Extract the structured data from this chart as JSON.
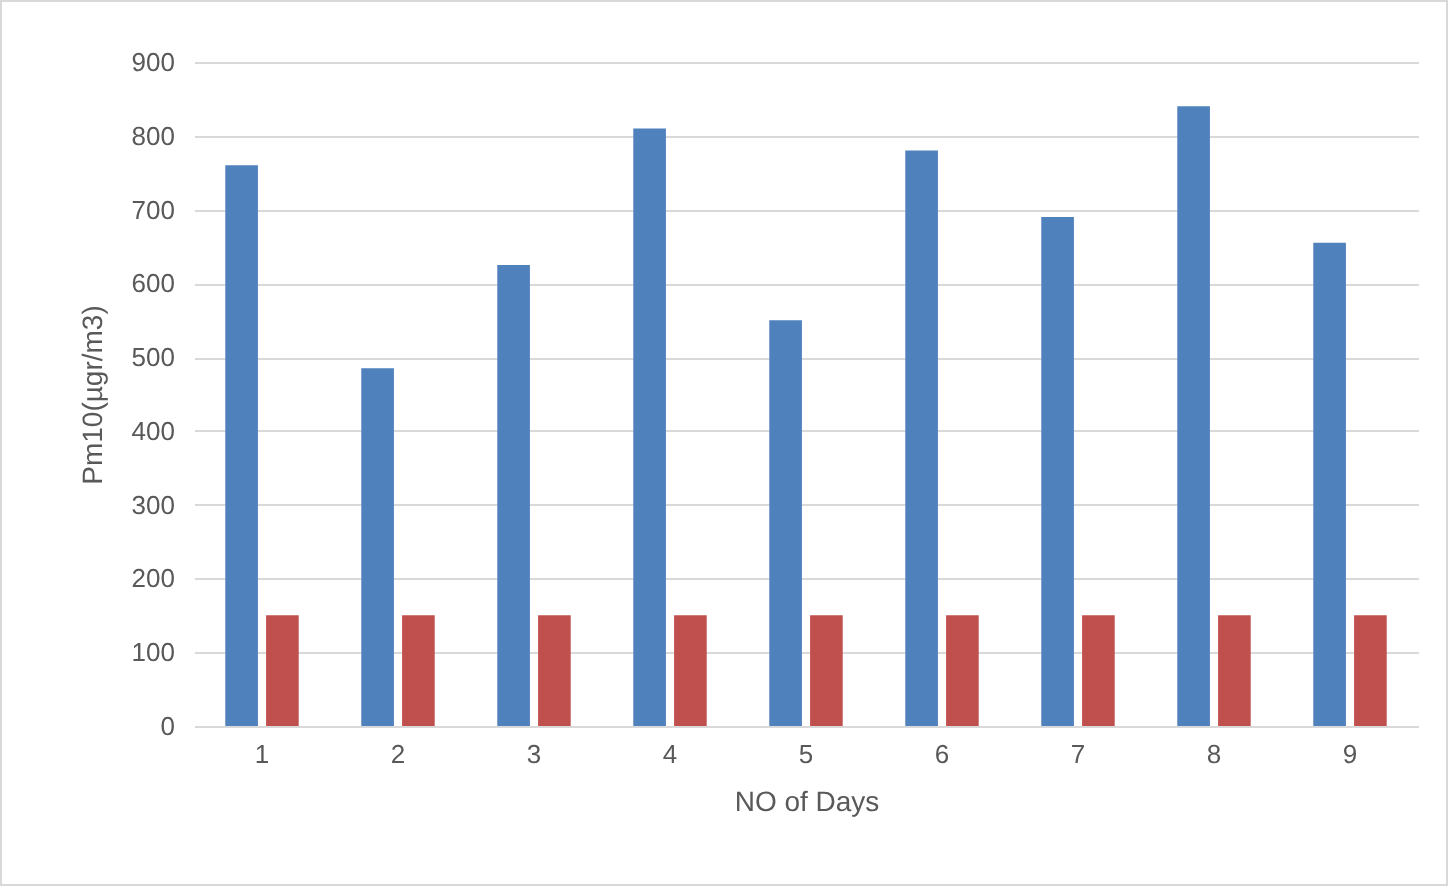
{
  "chart_data": {
    "type": "bar",
    "xlabel": "NO of Days",
    "ylabel": "Pm10(µgr/m3)",
    "categories": [
      "1",
      "2",
      "3",
      "4",
      "5",
      "6",
      "7",
      "8",
      "9"
    ],
    "series": [
      {
        "color": "#4f81bd",
        "values": [
          760,
          485,
          625,
          810,
          550,
          780,
          690,
          840,
          655
        ]
      },
      {
        "color": "#c0504d",
        "values": [
          150,
          150,
          150,
          150,
          150,
          150,
          150,
          150,
          150
        ]
      }
    ],
    "ylim": [
      0,
      900
    ],
    "yticks": [
      0,
      100,
      200,
      300,
      400,
      500,
      600,
      700,
      800,
      900
    ],
    "grid": "y",
    "legend": false
  }
}
